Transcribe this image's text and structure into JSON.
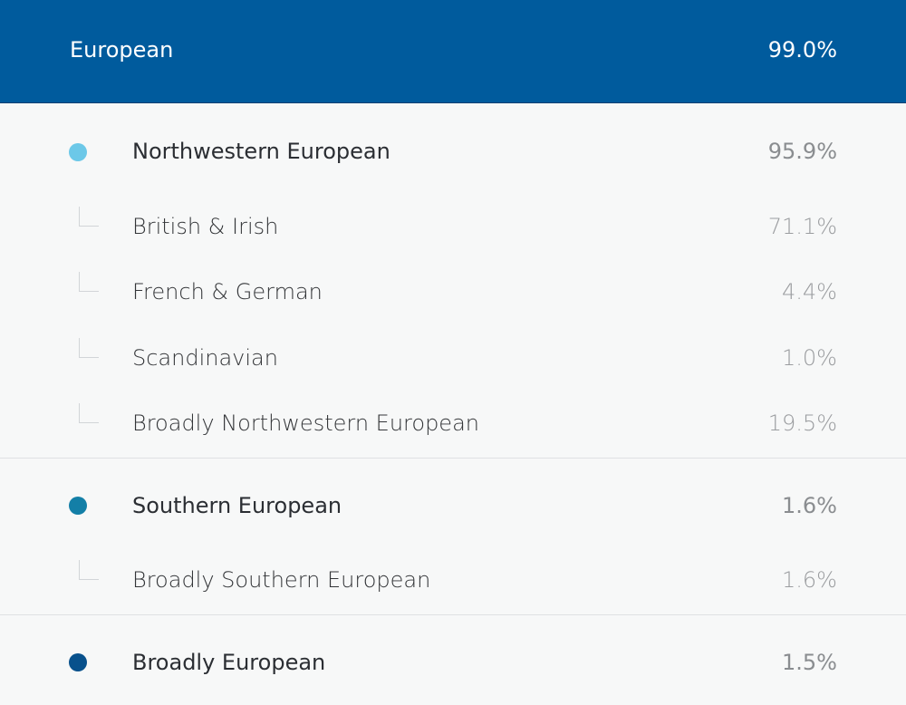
{
  "header": {
    "label": "European",
    "value": "99.0%"
  },
  "groups": [
    {
      "label": "Northwestern European",
      "value": "95.9%",
      "dot_color": "#6cc8e8",
      "children": [
        {
          "label": "British & Irish",
          "value": "71.1%"
        },
        {
          "label": "French & German",
          "value": "4.4%"
        },
        {
          "label": "Scandinavian",
          "value": "1.0%"
        },
        {
          "label": "Broadly Northwestern European",
          "value": "19.5%"
        }
      ]
    },
    {
      "label": "Southern European",
      "value": "1.6%",
      "dot_color": "#137fa7",
      "children": [
        {
          "label": "Broadly Southern European",
          "value": "1.6%"
        }
      ]
    },
    {
      "label": "Broadly European",
      "value": "1.5%",
      "dot_color": "#08518c",
      "children": []
    }
  ],
  "colors": {
    "header_bg": "#005b9d",
    "page_bg": "#f7f8f8",
    "divider": "#dfe1e3"
  }
}
